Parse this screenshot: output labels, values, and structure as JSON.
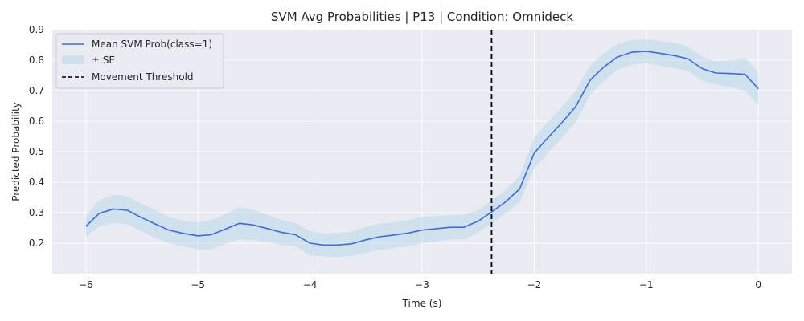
{
  "chart_data": {
    "type": "line",
    "title": "SVM Avg Probabilities | P13 | Condition: Omnideck",
    "xlabel": "Time (s)",
    "ylabel": "Predicted Probability",
    "xlim": [
      -6.3,
      0.3
    ],
    "ylim": [
      0.1,
      0.9
    ],
    "xticks": [
      -6,
      -5,
      -4,
      -3,
      -2,
      -1,
      0
    ],
    "xtick_labels": [
      "−6",
      "−5",
      "−4",
      "−3",
      "−2",
      "−1",
      "0"
    ],
    "yticks": [
      0.2,
      0.3,
      0.4,
      0.5,
      0.6,
      0.7,
      0.8,
      0.9
    ],
    "ytick_labels": [
      "0.2",
      "0.3",
      "0.4",
      "0.5",
      "0.6",
      "0.7",
      "0.8",
      "0.9"
    ],
    "grid": true,
    "legend_position": "top-left",
    "colors": {
      "background": "#eaeaf2",
      "grid": "#ffffff",
      "mean_line": "#4169e1",
      "band": "#add8e6",
      "threshold": "#000000"
    },
    "series": [
      {
        "name": "Mean SVM Prob(class=1)",
        "x": [
          -6.0,
          -5.88,
          -5.75,
          -5.63,
          -5.51,
          -5.38,
          -5.26,
          -5.13,
          -5.0,
          -4.88,
          -4.75,
          -4.63,
          -4.51,
          -4.38,
          -4.26,
          -4.13,
          -4.0,
          -3.88,
          -3.76,
          -3.63,
          -3.5,
          -3.38,
          -3.26,
          -3.13,
          -3.0,
          -2.88,
          -2.75,
          -2.63,
          -2.5,
          -2.38,
          -2.26,
          -2.13,
          -2.0,
          -1.88,
          -1.76,
          -1.63,
          -1.5,
          -1.38,
          -1.26,
          -1.13,
          -1.0,
          -0.88,
          -0.75,
          -0.63,
          -0.5,
          -0.38,
          -0.25,
          -0.12,
          0.0
        ],
        "values": [
          0.255,
          0.298,
          0.312,
          0.308,
          0.285,
          0.263,
          0.243,
          0.232,
          0.224,
          0.228,
          0.247,
          0.265,
          0.26,
          0.248,
          0.236,
          0.228,
          0.2,
          0.194,
          0.194,
          0.198,
          0.211,
          0.221,
          0.226,
          0.233,
          0.243,
          0.247,
          0.252,
          0.252,
          0.272,
          0.302,
          0.334,
          0.378,
          0.495,
          0.545,
          0.592,
          0.648,
          0.735,
          0.777,
          0.81,
          0.826,
          0.829,
          0.823,
          0.815,
          0.805,
          0.772,
          0.758,
          0.756,
          0.754,
          0.706
        ]
      }
    ],
    "band": {
      "name": "± SE",
      "lower": [
        0.222,
        0.255,
        0.266,
        0.262,
        0.24,
        0.218,
        0.2,
        0.19,
        0.18,
        0.18,
        0.198,
        0.212,
        0.21,
        0.204,
        0.195,
        0.19,
        0.16,
        0.157,
        0.155,
        0.158,
        0.168,
        0.178,
        0.184,
        0.19,
        0.2,
        0.205,
        0.212,
        0.212,
        0.235,
        0.265,
        0.296,
        0.334,
        0.445,
        0.493,
        0.542,
        0.596,
        0.688,
        0.731,
        0.768,
        0.786,
        0.79,
        0.782,
        0.773,
        0.765,
        0.733,
        0.72,
        0.712,
        0.699,
        0.652
      ],
      "upper": [
        0.288,
        0.341,
        0.358,
        0.354,
        0.33,
        0.308,
        0.286,
        0.274,
        0.268,
        0.276,
        0.296,
        0.318,
        0.31,
        0.292,
        0.277,
        0.266,
        0.24,
        0.231,
        0.233,
        0.238,
        0.254,
        0.264,
        0.268,
        0.276,
        0.286,
        0.289,
        0.292,
        0.292,
        0.309,
        0.339,
        0.372,
        0.422,
        0.545,
        0.597,
        0.642,
        0.7,
        0.782,
        0.823,
        0.852,
        0.866,
        0.868,
        0.864,
        0.857,
        0.845,
        0.811,
        0.796,
        0.8,
        0.809,
        0.76
      ]
    },
    "threshold": {
      "name": "Movement Threshold",
      "x": -2.38
    }
  }
}
